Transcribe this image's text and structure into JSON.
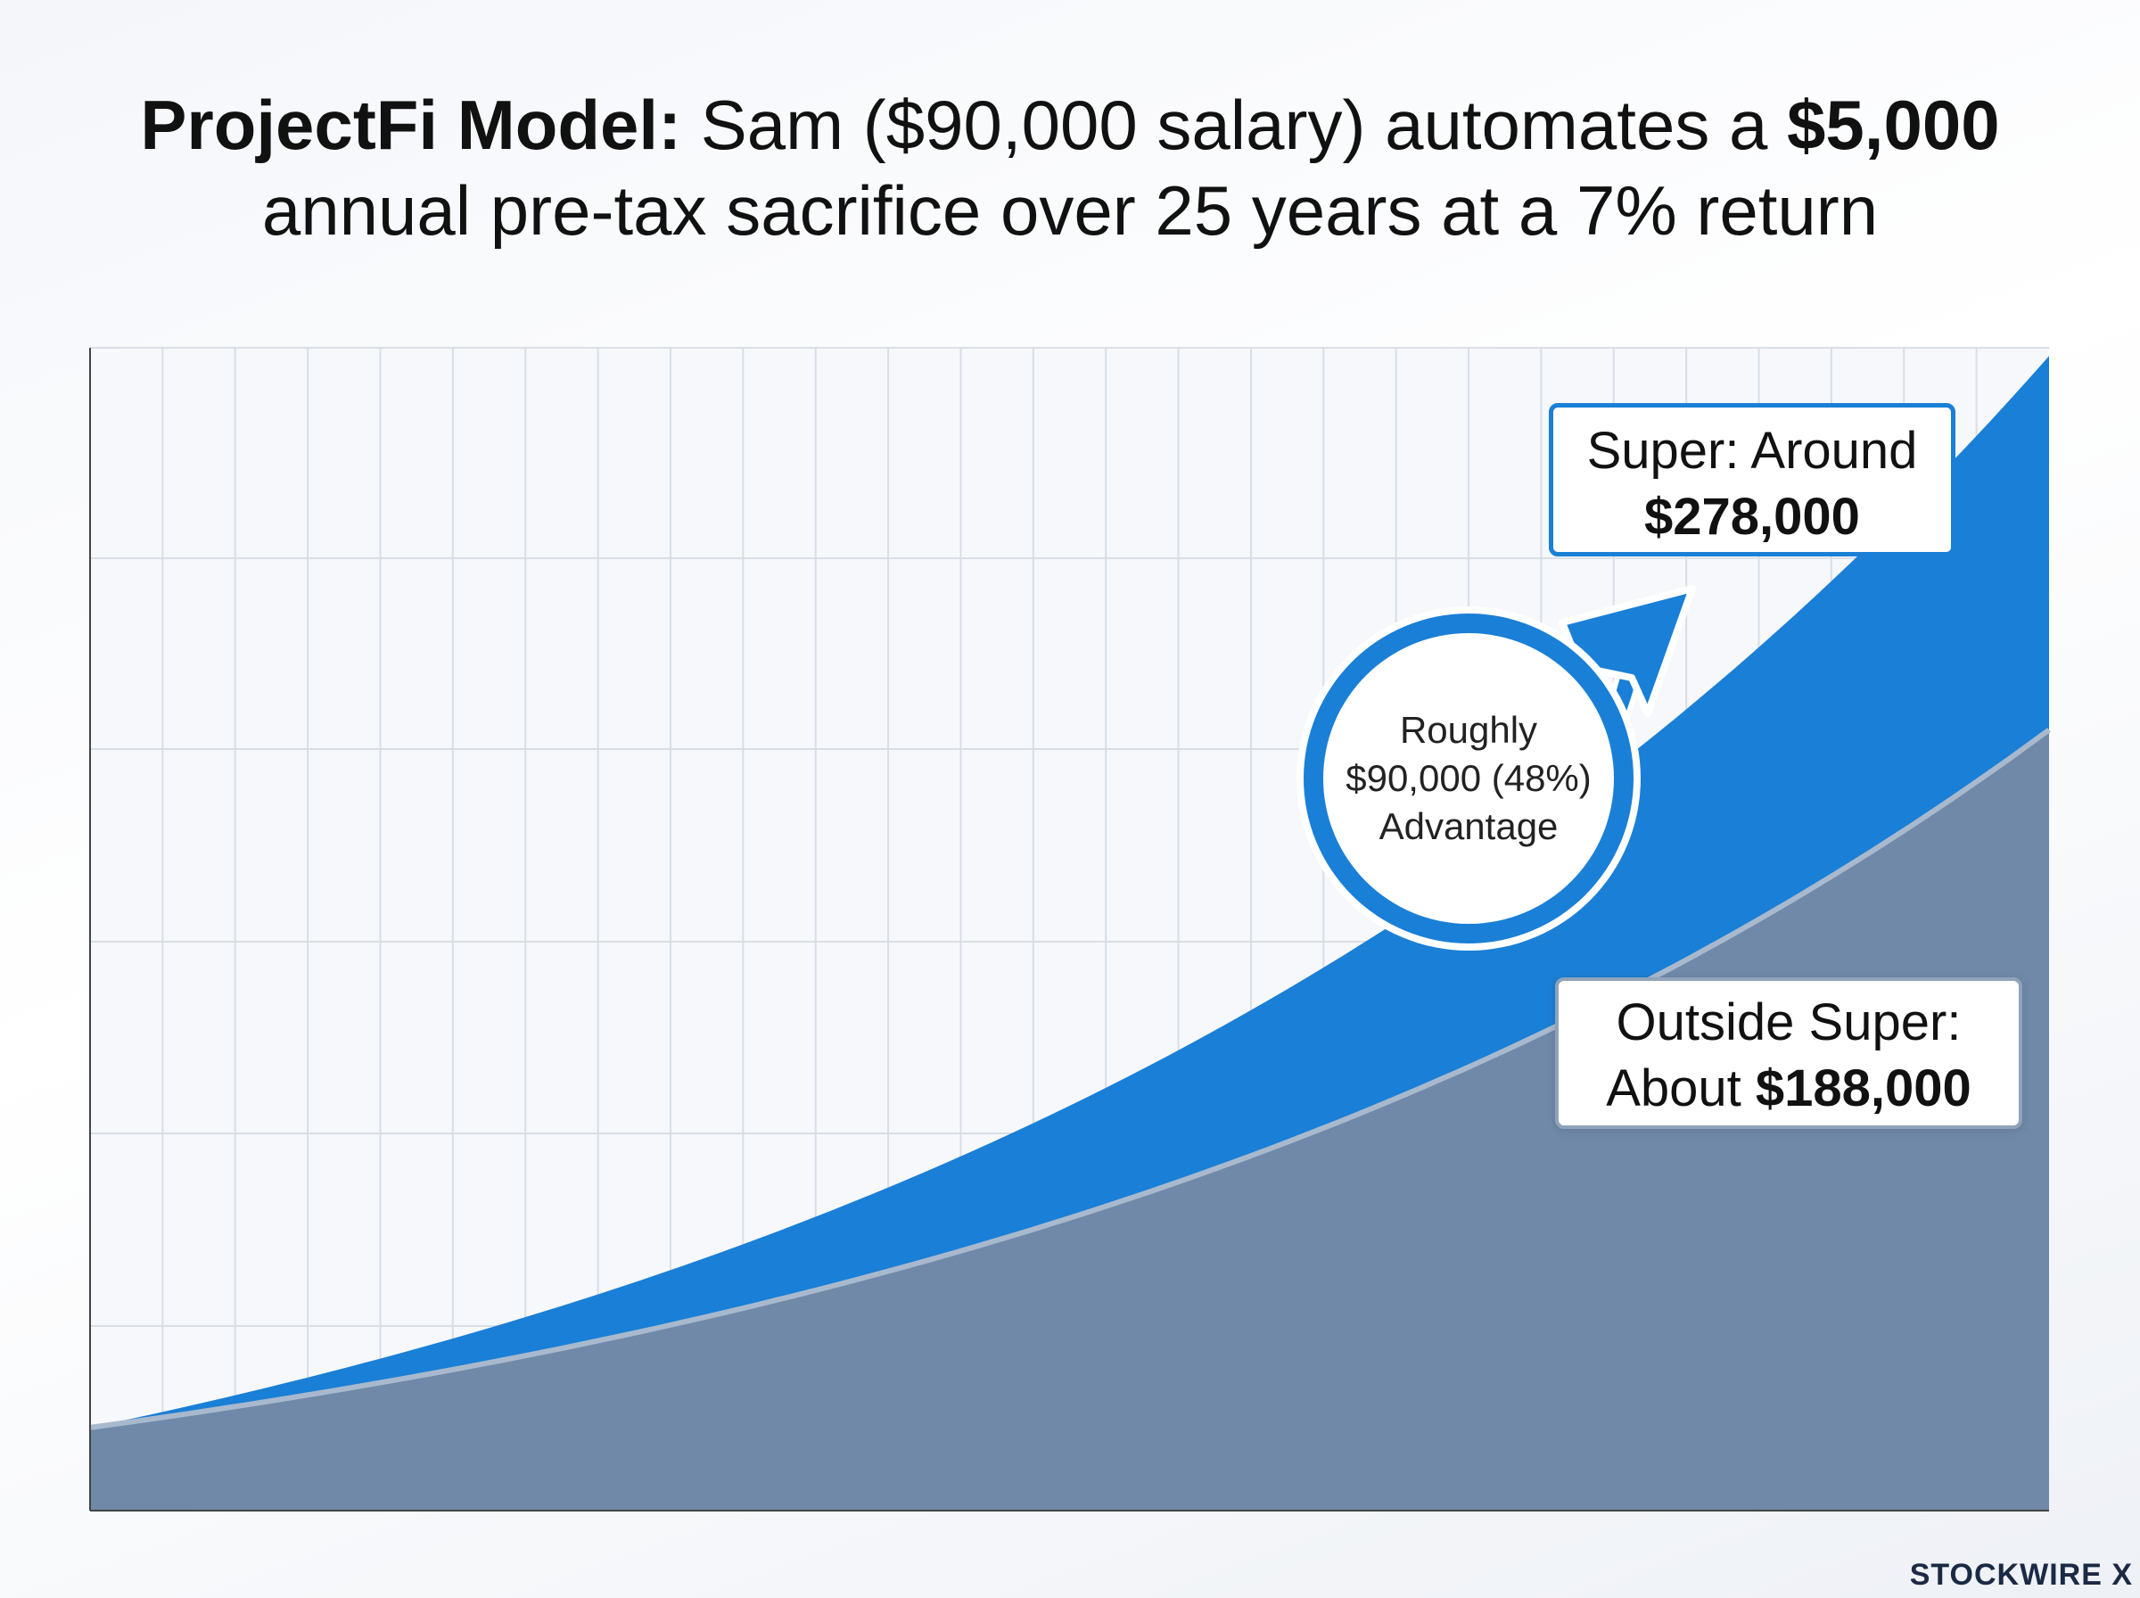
{
  "title": {
    "bold1": "ProjectFi Model:",
    "text1": " Sam ($90,000 salary) automates a ",
    "bold2": "$5,000",
    "line2": "annual pre-tax sacrifice over 25 years at a 7% return"
  },
  "chart_data": {
    "type": "area",
    "x_range": [
      0,
      25
    ],
    "ylim": [
      0,
      280000
    ],
    "grid": true,
    "series": [
      {
        "name": "Super",
        "final_value": 278000,
        "color": "#1a7fd6"
      },
      {
        "name": "Outside Super",
        "final_value": 188000,
        "color": "#7089a8"
      }
    ]
  },
  "callouts": {
    "super_line1": "Super: Around",
    "super_value": "$278,000",
    "outside_line1": "Outside Super:",
    "outside_prefix": "About ",
    "outside_value": "$188,000",
    "advantage_line1": "Roughly",
    "advantage_line2": "$90,000 (48%)",
    "advantage_line3": "Advantage"
  },
  "brand": "STOCKWIRE X"
}
